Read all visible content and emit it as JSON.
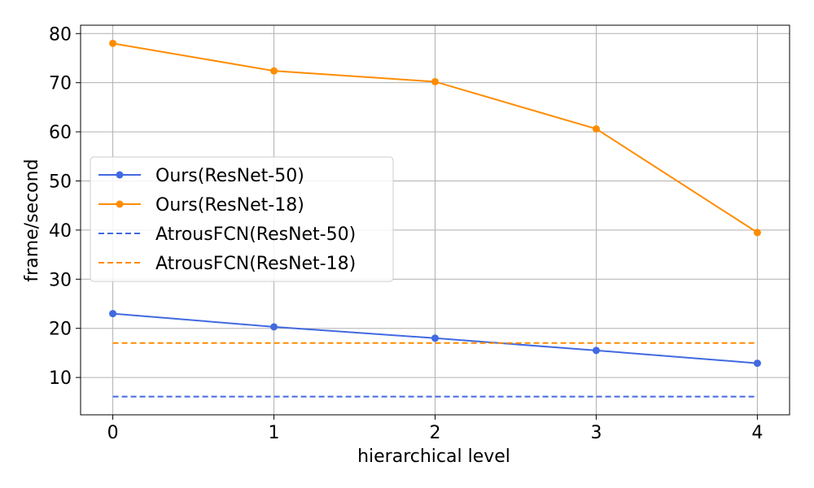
{
  "chart_data": {
    "type": "line",
    "xlabel": "hierarchical level",
    "ylabel": "frame/second",
    "x": [
      0,
      1,
      2,
      3,
      4
    ],
    "xticks": [
      "0",
      "1",
      "2",
      "3",
      "4"
    ],
    "yticks": [
      "10",
      "20",
      "30",
      "40",
      "50",
      "60",
      "70",
      "80"
    ],
    "xlim": [
      -0.2,
      4.2
    ],
    "ylim": [
      2.4,
      81.7
    ],
    "grid": true,
    "legend_position": "center-left",
    "series": [
      {
        "name": "Ours(ResNet-50)",
        "values": [
          23.0,
          20.3,
          18.0,
          15.5,
          12.9
        ],
        "color": "#4169e1",
        "style": "solid",
        "marker": "circle"
      },
      {
        "name": "Ours(ResNet-18)",
        "values": [
          78.0,
          72.4,
          70.2,
          60.6,
          39.5
        ],
        "color": "#ff8c00",
        "style": "solid",
        "marker": "circle"
      },
      {
        "name": "AtrousFCN(ResNet-50)",
        "values": [
          6.1,
          6.1,
          6.1,
          6.1,
          6.1
        ],
        "color": "#4169e1",
        "style": "dashed",
        "marker": "none"
      },
      {
        "name": "AtrousFCN(ResNet-18)",
        "values": [
          17.0,
          17.0,
          17.0,
          17.0,
          17.0
        ],
        "color": "#ff8c00",
        "style": "dashed",
        "marker": "none"
      }
    ]
  }
}
